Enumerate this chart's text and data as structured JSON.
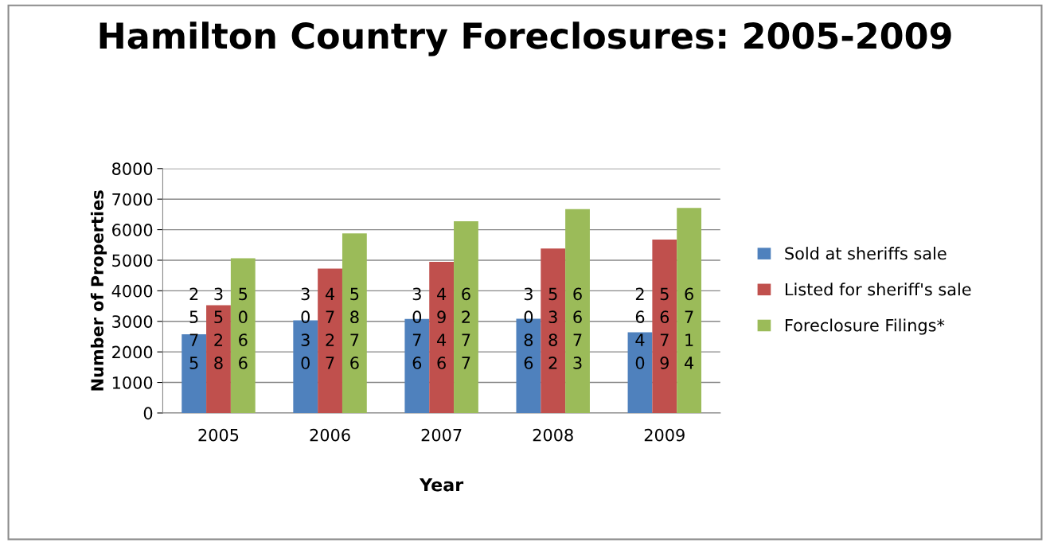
{
  "chart_data": {
    "type": "bar",
    "title": "Hamilton Country Foreclosures: 2005-2009",
    "xlabel": "Year",
    "ylabel": "Number of Properties",
    "categories": [
      "2005",
      "2006",
      "2007",
      "2008",
      "2009"
    ],
    "series": [
      {
        "name": "Sold at sheriffs sale",
        "color": "#4f81bd",
        "values": [
          2575,
          3030,
          3076,
          3086,
          2640
        ]
      },
      {
        "name": "Listed for sheriff's sale",
        "color": "#c0504d",
        "values": [
          3528,
          4727,
          4946,
          5382,
          5679
        ]
      },
      {
        "name": "Foreclosure Filings*",
        "color": "#9bbb59",
        "values": [
          5066,
          5876,
          6277,
          6673,
          6714
        ]
      }
    ],
    "ylim": [
      0,
      8000
    ],
    "yticks": [
      0,
      1000,
      2000,
      3000,
      4000,
      5000,
      6000,
      7000,
      8000
    ],
    "grid": "y",
    "legend": "right",
    "data_labels": true
  }
}
